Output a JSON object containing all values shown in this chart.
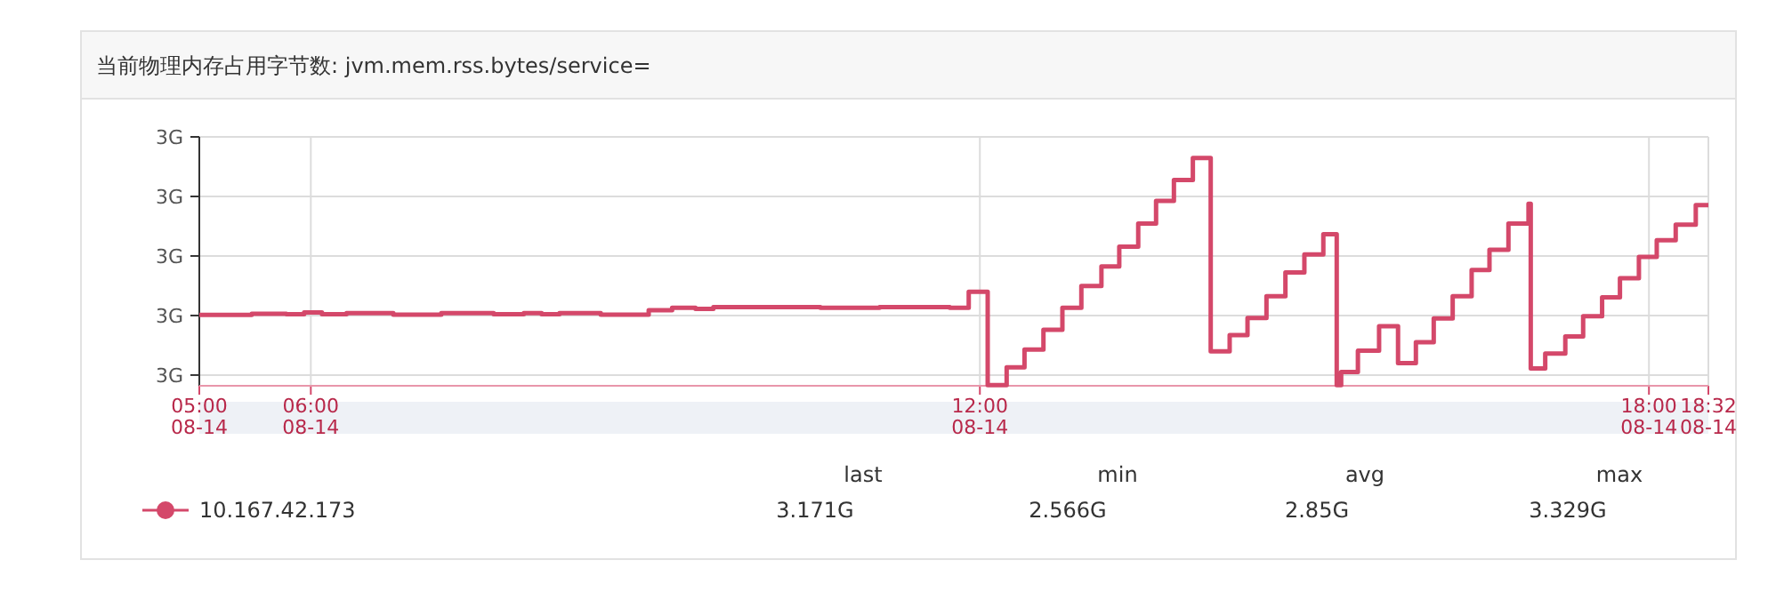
{
  "chart_data": {
    "type": "step",
    "title": "当前物理内存占用字节数: jvm.mem.rss.bytes/service=",
    "x": [
      5.0,
      5.47,
      5.78,
      5.94,
      6.1,
      6.32,
      6.74,
      7.17,
      7.64,
      7.91,
      8.07,
      8.23,
      8.6,
      9.03,
      9.24,
      9.45,
      9.61,
      10.41,
      10.57,
      11.1,
      11.73,
      11.9,
      12.07,
      12.24,
      12.4,
      12.57,
      12.74,
      12.91,
      13.09,
      13.25,
      13.42,
      13.58,
      13.74,
      13.91,
      14.07,
      14.24,
      14.4,
      14.57,
      14.74,
      14.91,
      15.08,
      15.2,
      15.24,
      15.39,
      15.58,
      15.75,
      15.91,
      16.07,
      16.24,
      16.41,
      16.57,
      16.74,
      16.92,
      16.94,
      17.07,
      17.25,
      17.41,
      17.58,
      17.74,
      17.91,
      18.07,
      18.24,
      18.42,
      18.533
    ],
    "series": [
      {
        "name": "10.167.42.173",
        "color": "#d4486a",
        "values": [
          2.802,
          2.806,
          2.804,
          2.81,
          2.804,
          2.808,
          2.803,
          2.808,
          2.804,
          2.808,
          2.804,
          2.808,
          2.803,
          2.818,
          2.826,
          2.822,
          2.828,
          2.828,
          2.826,
          2.828,
          2.826,
          2.88,
          2.566,
          2.626,
          2.686,
          2.752,
          2.826,
          2.899,
          2.965,
          3.031,
          3.109,
          3.185,
          3.255,
          3.329,
          2.68,
          2.734,
          2.792,
          2.865,
          2.945,
          3.005,
          3.073,
          2.566,
          2.61,
          2.682,
          2.764,
          2.64,
          2.71,
          2.79,
          2.865,
          2.953,
          3.021,
          3.109,
          3.175,
          2.622,
          2.672,
          2.73,
          2.798,
          2.861,
          2.925,
          2.997,
          3.053,
          3.105,
          3.171,
          3.171
        ]
      }
    ],
    "xlim": [
      5.0,
      18.533
    ],
    "xticks": [
      {
        "value": 5,
        "label": "05:00"
      },
      {
        "value": 6,
        "label": "06:00"
      },
      {
        "value": 12,
        "label": "12:00"
      },
      {
        "value": 18,
        "label": "18:00"
      },
      {
        "value": 18.533,
        "label": "18:32"
      }
    ],
    "xlabel": "08-14",
    "ylim": [
      2.564,
      3.4
    ],
    "yticks": [
      {
        "value": 2.6,
        "label": "3G"
      },
      {
        "value": 2.8,
        "label": "3G"
      },
      {
        "value": 3.0,
        "label": "3G"
      },
      {
        "value": 3.2,
        "label": "3G"
      },
      {
        "value": 3.4,
        "label": "3G"
      }
    ],
    "grid": true,
    "legend": "bottom left",
    "annotations": [
      "last",
      "min",
      "avg",
      "max",
      "3.171G",
      "2.566G",
      "2.85G",
      "3.329G"
    ]
  }
}
